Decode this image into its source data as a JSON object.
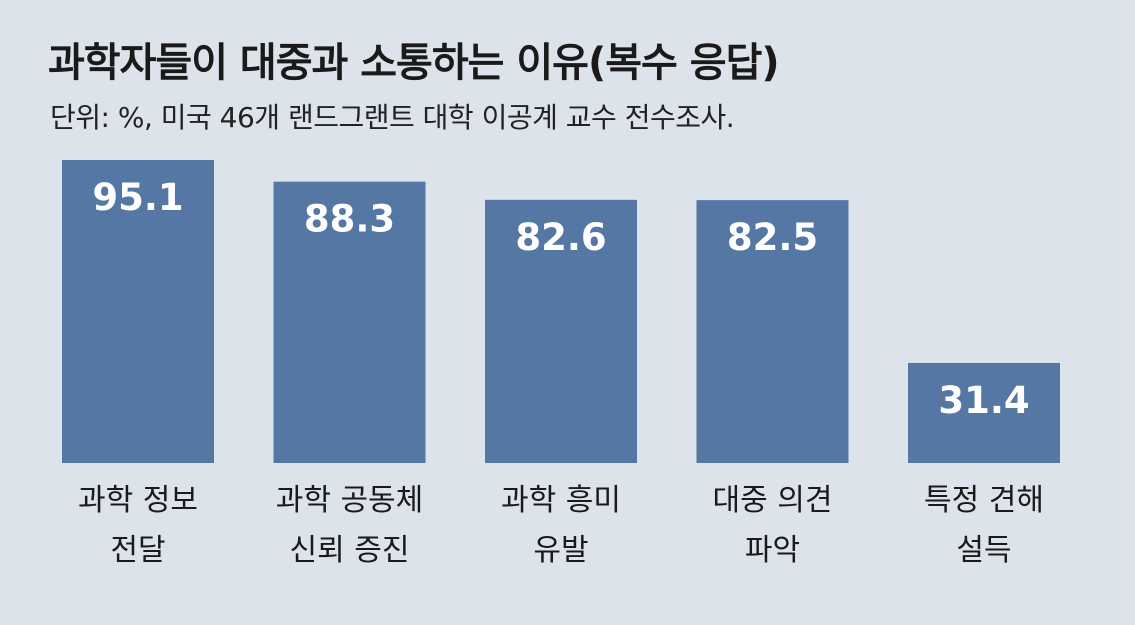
{
  "title": "과학자들이 대중과 소통하는 이유(복수 응답)",
  "subtitle": "단위: %, 미국 46개 랜드그랜트 대학 이공계 교수 전수조사.",
  "colors": {
    "background": "#dde3ea",
    "bar": "#5477a3",
    "value_label": "#ffffff",
    "text": "#1a1a1a"
  },
  "chart_data": {
    "type": "bar",
    "title": "과학자들이 대중과 소통하는 이유(복수 응답)",
    "subtitle": "단위: %, 미국 46개 랜드그랜트 대학 이공계 교수 전수조사.",
    "categories": [
      [
        "과학 정보",
        "전달"
      ],
      [
        "과학 공동체",
        "신뢰 증진"
      ],
      [
        "과학 흥미",
        "유발"
      ],
      [
        "대중 의견",
        "파악"
      ],
      [
        "특정 견해",
        "설득"
      ]
    ],
    "values": [
      95.1,
      88.3,
      82.6,
      82.5,
      31.4
    ],
    "value_labels": [
      "95.1",
      "88.3",
      "82.6",
      "82.5",
      "31.4"
    ],
    "ylim": [
      0,
      95.1
    ],
    "grid": false,
    "legend": "none"
  }
}
